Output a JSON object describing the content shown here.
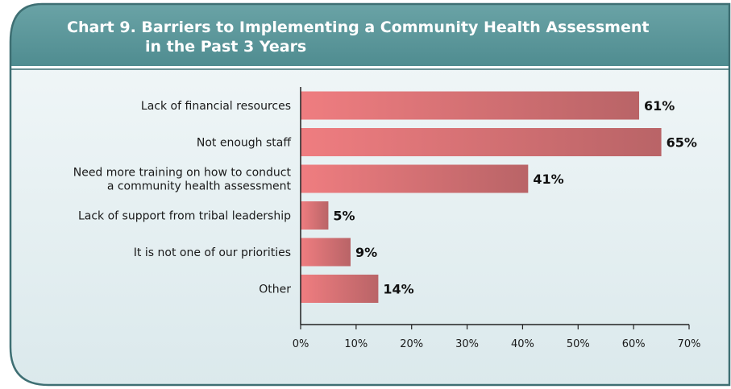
{
  "colors": {
    "header_top": "#6aa3a6",
    "header_bottom": "#4f8c90",
    "border": "#3e6f73",
    "panel_top": "#f3f8f9",
    "panel_bottom": "#dbe9ec",
    "bar_start": "#ef7d80",
    "bar_end": "#b96467",
    "axis": "#222222"
  },
  "chart_data": {
    "type": "bar",
    "orientation": "horizontal",
    "title": [
      "Chart 9. Barriers to Implementing a Community Health Assessment",
      "in the Past 3 Years"
    ],
    "categories": [
      [
        "Lack of financial resources"
      ],
      [
        "Not enough staff"
      ],
      [
        "Need more training on how to conduct",
        "a community health assessment"
      ],
      [
        "Lack of support from tribal leadership"
      ],
      [
        "It is not one of our priorities"
      ],
      [
        "Other"
      ]
    ],
    "values": [
      61,
      65,
      41,
      5,
      9,
      14
    ],
    "value_labels": [
      "61%",
      "65%",
      "41%",
      "5%",
      "9%",
      "14%"
    ],
    "xlim": [
      0,
      70
    ],
    "xticks": [
      0,
      10,
      20,
      30,
      40,
      50,
      60,
      70
    ],
    "xtick_labels": [
      "0%",
      "10%",
      "20%",
      "30%",
      "40%",
      "50%",
      "60%",
      "70%"
    ],
    "xlabel": "",
    "ylabel": "",
    "grid": false,
    "legend": "none"
  }
}
